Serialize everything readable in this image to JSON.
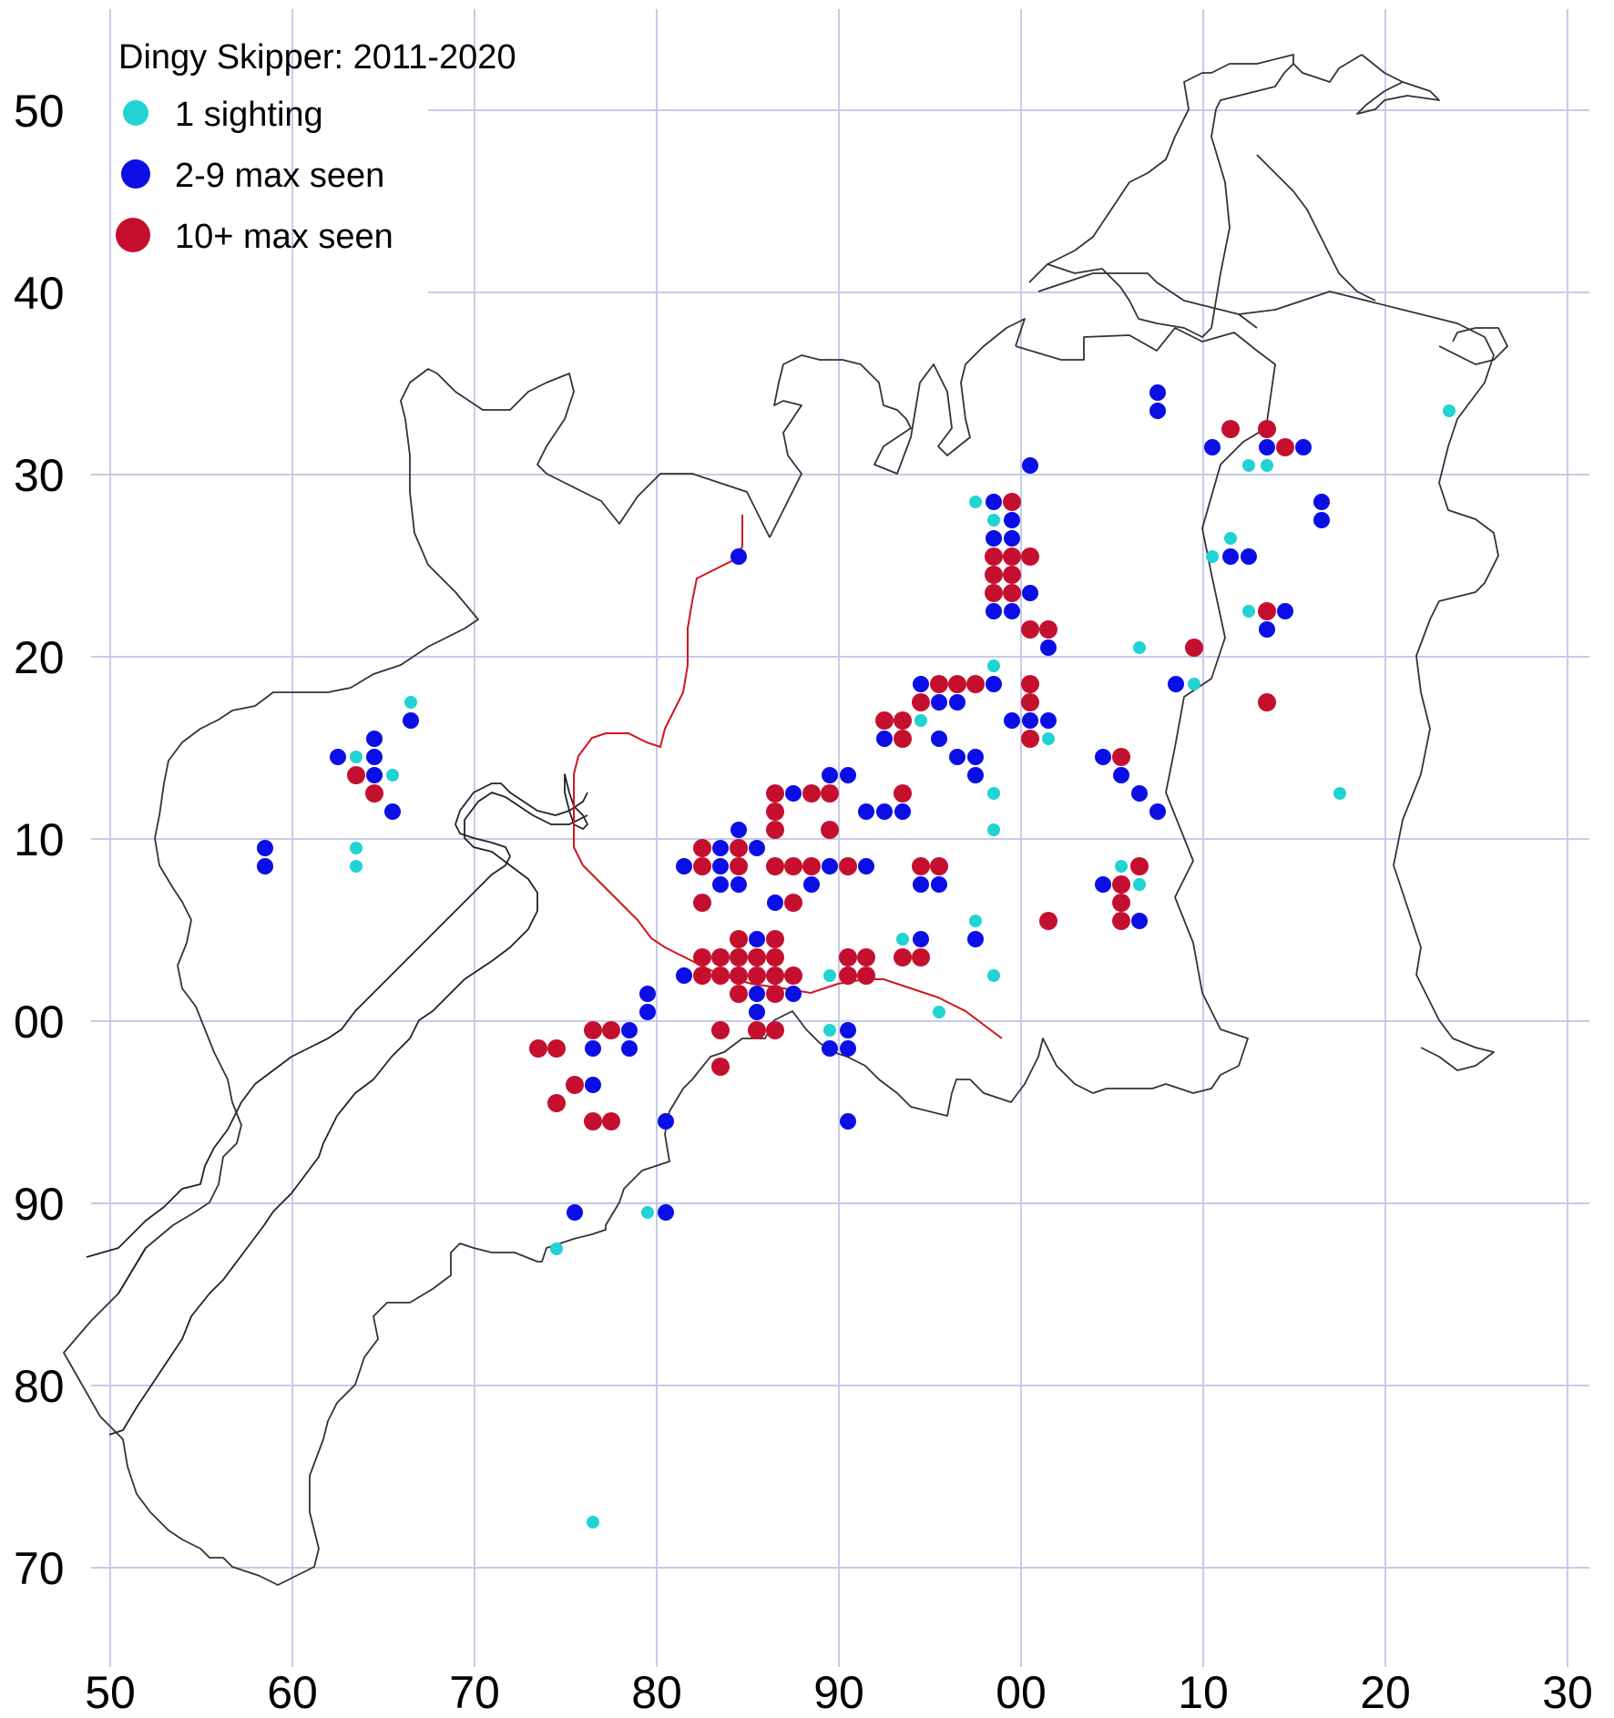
{
  "legend": {
    "title": "Dingy Skipper:  2011-2020",
    "items": [
      {
        "label": "1 sighting",
        "category": "one",
        "color": "#22d3d3"
      },
      {
        "label": "2-9 max seen",
        "category": "few",
        "color": "#0b0fe6"
      },
      {
        "label": "10+ max seen",
        "category": "many",
        "color": "#c4102e"
      }
    ]
  },
  "axes": {
    "x_ticks": [
      "50",
      "60",
      "70",
      "80",
      "90",
      "00",
      "10",
      "20",
      "30"
    ],
    "y_ticks": [
      "50",
      "40",
      "30",
      "20",
      "10",
      "00",
      "90",
      "80",
      "70"
    ]
  },
  "chart_data": {
    "type": "scatter",
    "x_range": [
      50,
      130
    ],
    "y_range": [
      70,
      150
    ],
    "records": {
      "one": [
        [
          66.5,
          117.5
        ],
        [
          63.5,
          114.5
        ],
        [
          65.5,
          113.5
        ],
        [
          63.5,
          109.5
        ],
        [
          63.5,
          108.5
        ],
        [
          97.5,
          128.5
        ],
        [
          98.5,
          127.5
        ],
        [
          98.5,
          119.5
        ],
        [
          94.5,
          116.5
        ],
        [
          101.5,
          115.5
        ],
        [
          98.5,
          112.5
        ],
        [
          98.5,
          110.5
        ],
        [
          97.5,
          105.5
        ],
        [
          93.5,
          104.5
        ],
        [
          98.5,
          102.5
        ],
        [
          89.5,
          102.5
        ],
        [
          95.5,
          100.5
        ],
        [
          89.5,
          99.5
        ],
        [
          79.5,
          89.5
        ],
        [
          74.5,
          87.5
        ],
        [
          76.5,
          72.5
        ],
        [
          111.5,
          126.5
        ],
        [
          110.5,
          125.5
        ],
        [
          112.5,
          122.5
        ],
        [
          106.5,
          120.5
        ],
        [
          109.5,
          118.5
        ],
        [
          105.5,
          108.5
        ],
        [
          106.5,
          107.5
        ],
        [
          117.5,
          112.5
        ],
        [
          112.5,
          130.5
        ],
        [
          113.5,
          130.5
        ],
        [
          123.5,
          133.5
        ]
      ],
      "few": [
        [
          58.5,
          109.5
        ],
        [
          58.5,
          108.5
        ],
        [
          62.5,
          114.5
        ],
        [
          64.5,
          115.5
        ],
        [
          64.5,
          114.5
        ],
        [
          64.5,
          113.5
        ],
        [
          65.5,
          111.5
        ],
        [
          66.5,
          116.5
        ],
        [
          84.5,
          125.5
        ],
        [
          100.5,
          130.5
        ],
        [
          98.5,
          128.5
        ],
        [
          99.5,
          127.5
        ],
        [
          98.5,
          126.5
        ],
        [
          99.5,
          126.5
        ],
        [
          98.5,
          125.5
        ],
        [
          100.5,
          123.5
        ],
        [
          98.5,
          122.5
        ],
        [
          99.5,
          122.5
        ],
        [
          101.5,
          120.5
        ],
        [
          94.5,
          118.5
        ],
        [
          98.5,
          118.5
        ],
        [
          95.5,
          117.5
        ],
        [
          96.5,
          117.5
        ],
        [
          99.5,
          116.5
        ],
        [
          100.5,
          116.5
        ],
        [
          101.5,
          116.5
        ],
        [
          92.5,
          115.5
        ],
        [
          95.5,
          115.5
        ],
        [
          96.5,
          114.5
        ],
        [
          97.5,
          114.5
        ],
        [
          97.5,
          113.5
        ],
        [
          104.5,
          114.5
        ],
        [
          105.5,
          113.5
        ],
        [
          106.5,
          112.5
        ],
        [
          107.5,
          111.5
        ],
        [
          87.5,
          112.5
        ],
        [
          89.5,
          113.5
        ],
        [
          90.5,
          113.5
        ],
        [
          91.5,
          111.5
        ],
        [
          92.5,
          111.5
        ],
        [
          93.5,
          111.5
        ],
        [
          84.5,
          110.5
        ],
        [
          83.5,
          109.5
        ],
        [
          85.5,
          109.5
        ],
        [
          81.5,
          108.5
        ],
        [
          83.5,
          108.5
        ],
        [
          87.5,
          108.5
        ],
        [
          89.5,
          108.5
        ],
        [
          91.5,
          108.5
        ],
        [
          83.5,
          107.5
        ],
        [
          84.5,
          107.5
        ],
        [
          88.5,
          107.5
        ],
        [
          94.5,
          107.5
        ],
        [
          95.5,
          107.5
        ],
        [
          86.5,
          106.5
        ],
        [
          104.5,
          107.5
        ],
        [
          106.5,
          105.5
        ],
        [
          97.5,
          104.5
        ],
        [
          94.5,
          104.5
        ],
        [
          85.5,
          104.5
        ],
        [
          81.5,
          102.5
        ],
        [
          84.5,
          101.5
        ],
        [
          85.5,
          101.5
        ],
        [
          86.5,
          101.5
        ],
        [
          87.5,
          101.5
        ],
        [
          79.5,
          101.5
        ],
        [
          79.5,
          100.5
        ],
        [
          85.5,
          100.5
        ],
        [
          78.5,
          99.5
        ],
        [
          76.5,
          98.5
        ],
        [
          78.5,
          98.5
        ],
        [
          89.5,
          98.5
        ],
        [
          90.5,
          98.5
        ],
        [
          90.5,
          99.5
        ],
        [
          76.5,
          96.5
        ],
        [
          80.5,
          94.5
        ],
        [
          90.5,
          94.5
        ],
        [
          75.5,
          89.5
        ],
        [
          80.5,
          89.5
        ],
        [
          107.5,
          134.5
        ],
        [
          107.5,
          133.5
        ],
        [
          110.5,
          131.5
        ],
        [
          113.5,
          131.5
        ],
        [
          115.5,
          131.5
        ],
        [
          116.5,
          128.5
        ],
        [
          116.5,
          127.5
        ],
        [
          111.5,
          125.5
        ],
        [
          112.5,
          125.5
        ],
        [
          113.5,
          121.5
        ],
        [
          114.5,
          122.5
        ],
        [
          108.5,
          118.5
        ]
      ],
      "many": [
        [
          63.5,
          113.5
        ],
        [
          64.5,
          112.5
        ],
        [
          99.5,
          128.5
        ],
        [
          98.5,
          125.5
        ],
        [
          99.5,
          125.5
        ],
        [
          100.5,
          125.5
        ],
        [
          98.5,
          124.5
        ],
        [
          99.5,
          124.5
        ],
        [
          98.5,
          123.5
        ],
        [
          99.5,
          123.5
        ],
        [
          100.5,
          121.5
        ],
        [
          101.5,
          121.5
        ],
        [
          100.5,
          118.5
        ],
        [
          100.5,
          117.5
        ],
        [
          100.5,
          115.5
        ],
        [
          95.5,
          118.5
        ],
        [
          96.5,
          118.5
        ],
        [
          97.5,
          118.5
        ],
        [
          94.5,
          117.5
        ],
        [
          92.5,
          116.5
        ],
        [
          93.5,
          116.5
        ],
        [
          93.5,
          115.5
        ],
        [
          93.5,
          112.5
        ],
        [
          86.5,
          112.5
        ],
        [
          88.5,
          112.5
        ],
        [
          89.5,
          112.5
        ],
        [
          86.5,
          111.5
        ],
        [
          86.5,
          110.5
        ],
        [
          89.5,
          110.5
        ],
        [
          82.5,
          109.5
        ],
        [
          84.5,
          109.5
        ],
        [
          82.5,
          108.5
        ],
        [
          84.5,
          108.5
        ],
        [
          86.5,
          108.5
        ],
        [
          87.5,
          108.5
        ],
        [
          88.5,
          108.5
        ],
        [
          90.5,
          108.5
        ],
        [
          94.5,
          108.5
        ],
        [
          95.5,
          108.5
        ],
        [
          82.5,
          106.5
        ],
        [
          87.5,
          106.5
        ],
        [
          84.5,
          104.5
        ],
        [
          86.5,
          104.5
        ],
        [
          82.5,
          103.5
        ],
        [
          83.5,
          103.5
        ],
        [
          84.5,
          103.5
        ],
        [
          85.5,
          103.5
        ],
        [
          86.5,
          103.5
        ],
        [
          82.5,
          102.5
        ],
        [
          83.5,
          102.5
        ],
        [
          84.5,
          102.5
        ],
        [
          85.5,
          102.5
        ],
        [
          86.5,
          102.5
        ],
        [
          87.5,
          102.5
        ],
        [
          84.5,
          101.5
        ],
        [
          86.5,
          101.5
        ],
        [
          90.5,
          103.5
        ],
        [
          91.5,
          103.5
        ],
        [
          90.5,
          102.5
        ],
        [
          91.5,
          102.5
        ],
        [
          93.5,
          103.5
        ],
        [
          94.5,
          103.5
        ],
        [
          101.5,
          105.5
        ],
        [
          105.5,
          107.5
        ],
        [
          105.5,
          106.5
        ],
        [
          105.5,
          105.5
        ],
        [
          106.5,
          108.5
        ],
        [
          105.5,
          114.5
        ],
        [
          76.5,
          99.5
        ],
        [
          77.5,
          99.5
        ],
        [
          73.5,
          98.5
        ],
        [
          74.5,
          98.5
        ],
        [
          75.5,
          96.5
        ],
        [
          74.5,
          95.5
        ],
        [
          76.5,
          94.5
        ],
        [
          77.5,
          94.5
        ],
        [
          83.5,
          99.5
        ],
        [
          85.5,
          99.5
        ],
        [
          86.5,
          99.5
        ],
        [
          83.5,
          97.5
        ],
        [
          109.5,
          120.5
        ],
        [
          113.5,
          122.5
        ],
        [
          113.5,
          117.5
        ],
        [
          111.5,
          132.5
        ],
        [
          113.5,
          132.5
        ],
        [
          114.5,
          131.5
        ]
      ]
    }
  }
}
